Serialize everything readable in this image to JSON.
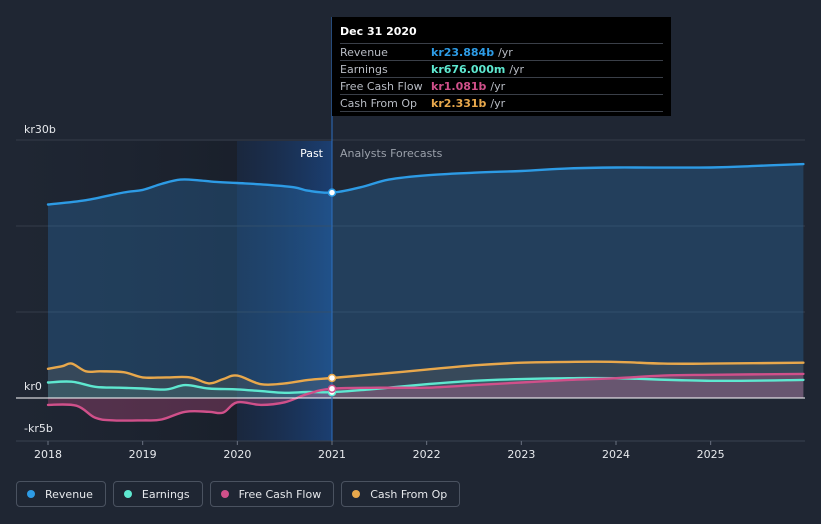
{
  "tooltip": {
    "date": "Dec 31 2020",
    "rows": [
      {
        "name": "Revenue",
        "value": "kr23.884b",
        "unit": "/yr",
        "color": "#2d9be5"
      },
      {
        "name": "Earnings",
        "value": "kr676.000m",
        "unit": "/yr",
        "color": "#5ee8d0"
      },
      {
        "name": "Free Cash Flow",
        "value": "kr1.081b",
        "unit": "/yr",
        "color": "#d0508a"
      },
      {
        "name": "Cash From Op",
        "value": "kr2.331b",
        "unit": "/yr",
        "color": "#e8a84c"
      }
    ]
  },
  "regions": {
    "past": "Past",
    "forecast": "Analysts Forecasts"
  },
  "legend": [
    {
      "name": "Revenue",
      "color": "#2d9be5"
    },
    {
      "name": "Earnings",
      "color": "#5ee8d0"
    },
    {
      "name": "Free Cash Flow",
      "color": "#d0508a"
    },
    {
      "name": "Cash From Op",
      "color": "#e8a84c"
    }
  ],
  "chart_data": {
    "type": "line",
    "title": "",
    "xlabel": "",
    "ylabel": "",
    "y_tick_labels": [
      "kr30b",
      "kr0",
      "-kr5b"
    ],
    "y_ticks": [
      30,
      0,
      -5
    ],
    "x_tick_labels": [
      "2018",
      "2019",
      "2020",
      "2021",
      "2022",
      "2023",
      "2024",
      "2025"
    ],
    "x_ticks": [
      2018,
      2019,
      2020,
      2021,
      2022,
      2023,
      2024,
      2025
    ],
    "xlim": [
      2017.7,
      2025.98
    ],
    "ylim": [
      -5,
      30
    ],
    "highlight_x": 2021,
    "forecast_start": 2021,
    "series": [
      {
        "name": "Revenue",
        "color": "#2d9be5",
        "unit": "kr billion",
        "points": [
          [
            2018,
            22.5
          ],
          [
            2018.4,
            23.0
          ],
          [
            2018.8,
            23.9
          ],
          [
            2019.0,
            24.2
          ],
          [
            2019.2,
            24.9
          ],
          [
            2019.4,
            25.4
          ],
          [
            2019.6,
            25.3
          ],
          [
            2019.8,
            25.1
          ],
          [
            2020.0,
            25.0
          ],
          [
            2020.3,
            24.8
          ],
          [
            2020.6,
            24.5
          ],
          [
            2020.75,
            24.1
          ],
          [
            2021.0,
            23.884
          ],
          [
            2021.3,
            24.5
          ],
          [
            2021.6,
            25.4
          ],
          [
            2022.0,
            25.9
          ],
          [
            2022.5,
            26.2
          ],
          [
            2023.0,
            26.4
          ],
          [
            2023.5,
            26.7
          ],
          [
            2024.0,
            26.8
          ],
          [
            2025.0,
            26.8
          ],
          [
            2025.5,
            27.0
          ],
          [
            2025.98,
            27.2
          ]
        ]
      },
      {
        "name": "Earnings",
        "color": "#5ee8d0",
        "unit": "kr billion",
        "points": [
          [
            2018,
            1.8
          ],
          [
            2018.25,
            1.9
          ],
          [
            2018.5,
            1.3
          ],
          [
            2018.75,
            1.2
          ],
          [
            2019.0,
            1.1
          ],
          [
            2019.25,
            1.0
          ],
          [
            2019.45,
            1.5
          ],
          [
            2019.7,
            1.1
          ],
          [
            2020.0,
            1.0
          ],
          [
            2020.25,
            0.8
          ],
          [
            2020.5,
            0.6
          ],
          [
            2020.75,
            0.7
          ],
          [
            2021.0,
            0.676
          ],
          [
            2021.4,
            1.0
          ],
          [
            2022.0,
            1.6
          ],
          [
            2022.5,
            2.0
          ],
          [
            2023.0,
            2.2
          ],
          [
            2023.5,
            2.3
          ],
          [
            2024.0,
            2.3
          ],
          [
            2025.0,
            2.0
          ],
          [
            2025.98,
            2.1
          ]
        ]
      },
      {
        "name": "Free Cash Flow",
        "color": "#d0508a",
        "unit": "kr billion",
        "points": [
          [
            2018,
            -0.8
          ],
          [
            2018.3,
            -0.9
          ],
          [
            2018.5,
            -2.3
          ],
          [
            2018.7,
            -2.6
          ],
          [
            2019.0,
            -2.6
          ],
          [
            2019.2,
            -2.5
          ],
          [
            2019.45,
            -1.6
          ],
          [
            2019.7,
            -1.6
          ],
          [
            2019.85,
            -1.7
          ],
          [
            2020.0,
            -0.5
          ],
          [
            2020.25,
            -0.8
          ],
          [
            2020.5,
            -0.5
          ],
          [
            2020.75,
            0.5
          ],
          [
            2021.0,
            1.081
          ],
          [
            2021.5,
            1.2
          ],
          [
            2022.0,
            1.2
          ],
          [
            2022.5,
            1.5
          ],
          [
            2023.0,
            1.8
          ],
          [
            2023.5,
            2.1
          ],
          [
            2024.0,
            2.3
          ],
          [
            2024.5,
            2.6
          ],
          [
            2025.0,
            2.7
          ],
          [
            2025.98,
            2.8
          ]
        ]
      },
      {
        "name": "Cash From Op",
        "color": "#e8a84c",
        "unit": "kr billion",
        "points": [
          [
            2018,
            3.4
          ],
          [
            2018.15,
            3.7
          ],
          [
            2018.25,
            4.0
          ],
          [
            2018.4,
            3.1
          ],
          [
            2018.55,
            3.1
          ],
          [
            2018.8,
            3.0
          ],
          [
            2019.0,
            2.4
          ],
          [
            2019.25,
            2.4
          ],
          [
            2019.5,
            2.4
          ],
          [
            2019.7,
            1.7
          ],
          [
            2019.85,
            2.2
          ],
          [
            2020.0,
            2.6
          ],
          [
            2020.25,
            1.6
          ],
          [
            2020.5,
            1.7
          ],
          [
            2020.75,
            2.1
          ],
          [
            2021.0,
            2.331
          ],
          [
            2021.5,
            2.8
          ],
          [
            2022.0,
            3.3
          ],
          [
            2022.5,
            3.8
          ],
          [
            2023.0,
            4.1
          ],
          [
            2023.5,
            4.2
          ],
          [
            2024.0,
            4.2
          ],
          [
            2024.5,
            4.0
          ],
          [
            2025.0,
            4.0
          ],
          [
            2025.98,
            4.1
          ]
        ]
      }
    ]
  }
}
